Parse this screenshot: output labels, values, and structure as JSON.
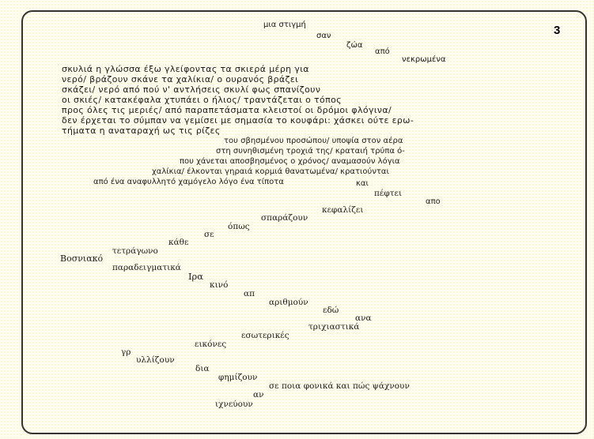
{
  "page_number": "3",
  "top_cascade": [
    "μια στιγμή",
    "σαν",
    "ζώα",
    "από",
    "νεκρωμένα"
  ],
  "paragraph": [
    "σκυλιά η γλώσσα έξω γλείφοντας τα σκιερά μέρη για",
    "νερό/ βράζουν σκάνε τα χαλίκια/ ο ουρανός βράζει",
    "σκάζει/ νερό από πού ν' αντλήσεις σκυλί φως σπανίζουν",
    "οι σκιές/ κατακέφαλα χτυπάει ο ήλιος/ τραντάζεται ο τόπος",
    "προς όλες τις μεριές/ από παραπετάσματα κλειστοί οι δρόμοι φλόγινα/",
    "δεν έρχεται το σύμπαν να γεμίσει με σημασία το κουφάρι: χάσκει ούτε ερω-",
    "τήματα η αναταραχή ως τις ρίζες"
  ],
  "indented_lines": [
    "του σβησμένου προσώπου/ υποψία στον αέρα",
    "στη συνηθισμένη τροχιά της/ κραταιή τρύπα ό-",
    "που χάνεται αποσβησμένος ο χρόνος/ αναμασούν λόγια",
    "χαλίκια/ έλκονται γηραιά κορμιά θανατωμένα/ κρατιούνται",
    "από ένα αναφυλλητό χαμόγελο λόγο ένα τίποτα"
  ],
  "scattered_words": [
    "και",
    "πέφτει",
    "απο",
    "κεφαλίζει",
    "σπαράζουν",
    "όπως",
    "σε",
    "κάθε",
    "τετράγωνο",
    "Βοσνιακό",
    "παραδειγματικά",
    "Ιρα",
    "κινό",
    "απ",
    "αριθμούν",
    "εδώ",
    "ανα",
    "τριχιαστικά",
    "εσωτερικές",
    "εικόνες",
    "γρ",
    "υλλίζουν",
    "δια",
    "φημίζουν",
    "σε ποια φονικά και πώς ψάχνουν",
    "αν",
    "ιχνεύουν"
  ]
}
